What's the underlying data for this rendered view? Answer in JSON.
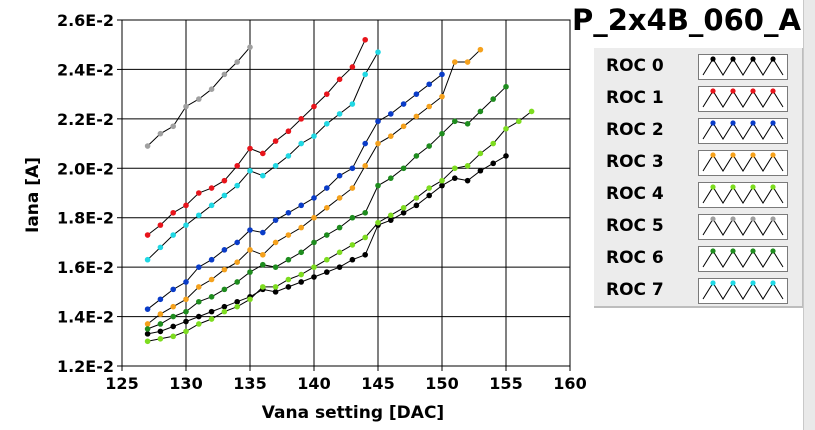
{
  "chart_data": {
    "type": "line",
    "title": "P_2x4B_060_A",
    "xlabel": "Vana setting [DAC]",
    "ylabel": "Iana [A]",
    "xlim": [
      125,
      160
    ],
    "ylim": [
      0.012,
      0.026
    ],
    "xticks": [
      125,
      130,
      135,
      140,
      145,
      150,
      155,
      160
    ],
    "xtick_labels": [
      "125",
      "130",
      "135",
      "140",
      "145",
      "150",
      "155",
      "160"
    ],
    "yticks": [
      0.012,
      0.014,
      0.016,
      0.018,
      0.02,
      0.022,
      0.024,
      0.026
    ],
    "ytick_labels": [
      "1.2E-2",
      "1.4E-2",
      "1.6E-2",
      "1.8E-2",
      "2.0E-2",
      "2.2E-2",
      "2.4E-2",
      "2.6E-2"
    ],
    "grid": true,
    "legend_position": "right",
    "series": [
      {
        "name": "ROC 0",
        "color": "#000000",
        "x": [
          127,
          128,
          129,
          130,
          131,
          132,
          133,
          134,
          135,
          136,
          137,
          138,
          139,
          140,
          141,
          142,
          143,
          144,
          145,
          146,
          147,
          148,
          149,
          150,
          151,
          152,
          153,
          154,
          155
        ],
        "values": [
          0.0133,
          0.0134,
          0.0136,
          0.0138,
          0.014,
          0.0142,
          0.0144,
          0.0146,
          0.0148,
          0.0151,
          0.015,
          0.0152,
          0.0154,
          0.0156,
          0.0158,
          0.016,
          0.0163,
          0.0165,
          0.0177,
          0.0179,
          0.0182,
          0.0185,
          0.0189,
          0.0193,
          0.0196,
          0.0195,
          0.0199,
          0.0202,
          0.0205
        ]
      },
      {
        "name": "ROC 1",
        "color": "#e8141b",
        "x": [
          127,
          128,
          129,
          130,
          131,
          132,
          133,
          134,
          135,
          136,
          137,
          138,
          139,
          140,
          141,
          142,
          143,
          144
        ],
        "values": [
          0.0173,
          0.0177,
          0.0182,
          0.0185,
          0.019,
          0.0192,
          0.0195,
          0.0201,
          0.0208,
          0.0206,
          0.0211,
          0.0215,
          0.022,
          0.0225,
          0.023,
          0.0236,
          0.0241,
          0.0252
        ]
      },
      {
        "name": "ROC 2",
        "color": "#0a3cc8",
        "x": [
          127,
          128,
          129,
          130,
          131,
          132,
          133,
          134,
          135,
          136,
          137,
          138,
          139,
          140,
          141,
          142,
          143,
          144,
          145,
          146,
          147,
          148,
          149,
          150
        ],
        "values": [
          0.0143,
          0.0147,
          0.0151,
          0.0154,
          0.016,
          0.0163,
          0.0167,
          0.017,
          0.0175,
          0.0174,
          0.0179,
          0.0182,
          0.0185,
          0.0188,
          0.0192,
          0.0197,
          0.02,
          0.021,
          0.0219,
          0.0222,
          0.0226,
          0.023,
          0.0234,
          0.0238
        ]
      },
      {
        "name": "ROC 3",
        "color": "#f5a11c",
        "x": [
          127,
          128,
          129,
          130,
          131,
          132,
          133,
          134,
          135,
          136,
          137,
          138,
          139,
          140,
          141,
          142,
          143,
          144,
          145,
          146,
          147,
          148,
          149,
          150,
          151,
          152,
          153
        ],
        "values": [
          0.0137,
          0.0141,
          0.0144,
          0.0147,
          0.0152,
          0.0155,
          0.0159,
          0.0162,
          0.0167,
          0.0165,
          0.017,
          0.0173,
          0.0176,
          0.018,
          0.0184,
          0.0188,
          0.0192,
          0.0201,
          0.021,
          0.0213,
          0.0217,
          0.0221,
          0.0225,
          0.0229,
          0.0243,
          0.0243,
          0.0248
        ]
      },
      {
        "name": "ROC 4",
        "color": "#7ddc1f",
        "x": [
          127,
          128,
          129,
          130,
          131,
          132,
          133,
          134,
          135,
          136,
          137,
          138,
          139,
          140,
          141,
          142,
          143,
          144,
          145,
          146,
          147,
          148,
          149,
          150,
          151,
          152,
          153,
          154,
          155,
          156,
          157
        ],
        "values": [
          0.013,
          0.0131,
          0.0132,
          0.0134,
          0.0137,
          0.0139,
          0.0142,
          0.0144,
          0.0147,
          0.0152,
          0.0152,
          0.0155,
          0.0157,
          0.016,
          0.0163,
          0.0166,
          0.0169,
          0.0172,
          0.0178,
          0.0181,
          0.0184,
          0.0188,
          0.0192,
          0.0195,
          0.02,
          0.0201,
          0.0206,
          0.021,
          0.0216,
          0.0219,
          0.0223
        ]
      },
      {
        "name": "ROC 5",
        "color": "#a0a0a0",
        "x": [
          127,
          128,
          129,
          130,
          131,
          132,
          133,
          134,
          135
        ],
        "values": [
          0.0209,
          0.0214,
          0.0217,
          0.0225,
          0.0228,
          0.0232,
          0.0238,
          0.0243,
          0.0249
        ]
      },
      {
        "name": "ROC 6",
        "color": "#1e8c1e",
        "x": [
          127,
          128,
          129,
          130,
          131,
          132,
          133,
          134,
          135,
          136,
          137,
          138,
          139,
          140,
          141,
          142,
          143,
          144,
          145,
          146,
          147,
          148,
          149,
          150,
          151,
          152,
          153,
          154,
          155
        ],
        "values": [
          0.0135,
          0.0137,
          0.014,
          0.0142,
          0.0146,
          0.0148,
          0.0151,
          0.0154,
          0.0158,
          0.0161,
          0.016,
          0.0163,
          0.0166,
          0.017,
          0.0173,
          0.0176,
          0.018,
          0.0182,
          0.0193,
          0.0196,
          0.02,
          0.0205,
          0.0209,
          0.0214,
          0.0219,
          0.0218,
          0.0223,
          0.0228,
          0.0233
        ]
      },
      {
        "name": "ROC 7",
        "color": "#20d8e4",
        "x": [
          127,
          128,
          129,
          130,
          131,
          132,
          133,
          134,
          135,
          136,
          137,
          138,
          139,
          140,
          141,
          142,
          143,
          144,
          145
        ],
        "values": [
          0.0163,
          0.0168,
          0.0173,
          0.0177,
          0.0181,
          0.0185,
          0.0189,
          0.0193,
          0.0199,
          0.0197,
          0.0201,
          0.0205,
          0.021,
          0.0213,
          0.0218,
          0.0222,
          0.0226,
          0.0238,
          0.0247
        ]
      }
    ]
  }
}
